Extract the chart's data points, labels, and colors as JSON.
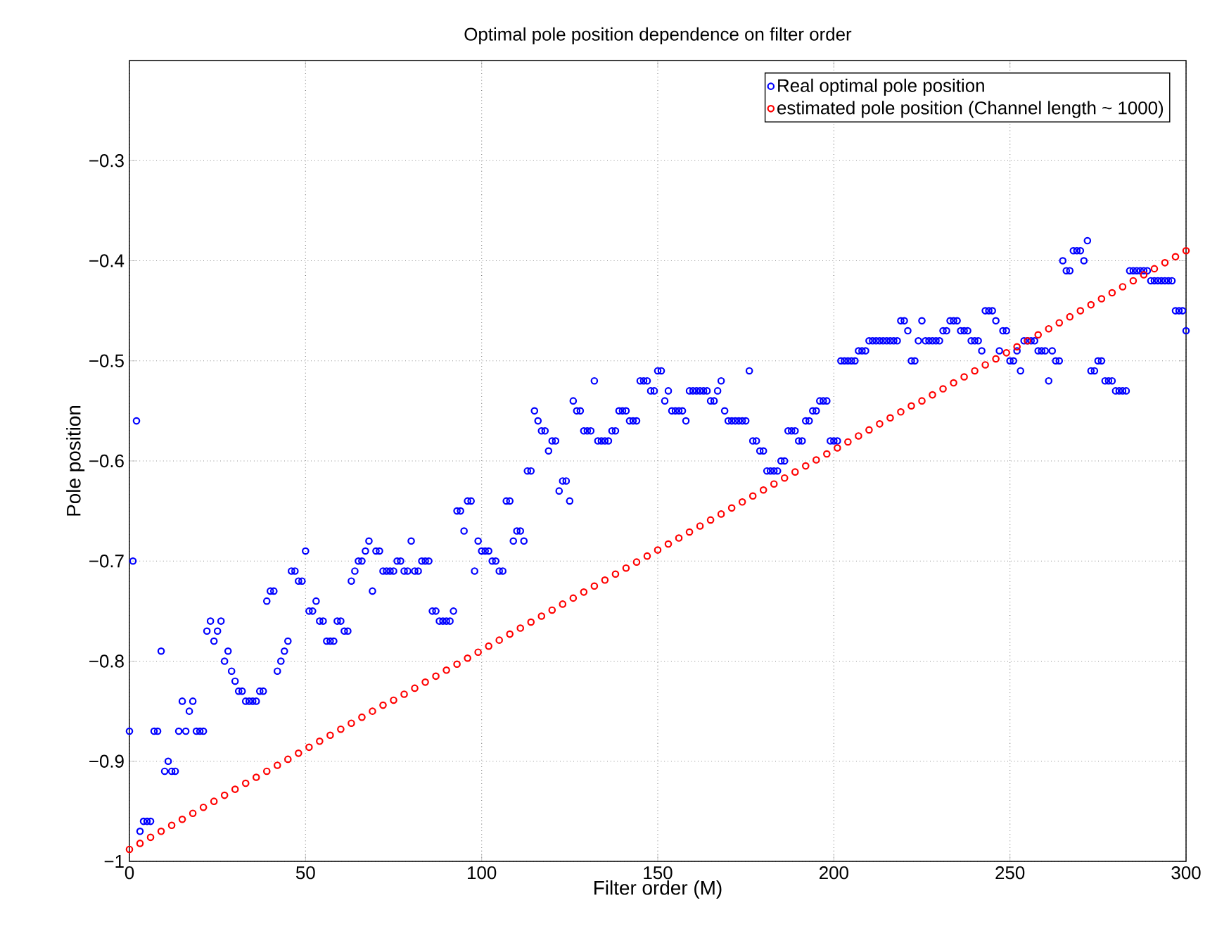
{
  "chart_data": {
    "type": "scatter",
    "title": "Optimal pole position dependence on filter order",
    "xlabel": "Filter order (M)",
    "ylabel": "Pole position",
    "xlim": [
      0,
      300
    ],
    "ylim": [
      -1,
      -0.2
    ],
    "xticks": [
      0,
      50,
      100,
      150,
      200,
      250,
      300
    ],
    "yticks": [
      {
        "value": -1,
        "label": "−1"
      },
      {
        "value": -0.9,
        "label": "−0.9"
      },
      {
        "value": -0.8,
        "label": "−0.8"
      },
      {
        "value": -0.7,
        "label": "−0.7"
      },
      {
        "value": -0.6,
        "label": "−0.6"
      },
      {
        "value": -0.5,
        "label": "−0.5"
      },
      {
        "value": -0.4,
        "label": "−0.4"
      },
      {
        "value": -0.3,
        "label": "−0.3"
      }
    ],
    "grid": true,
    "legend": "top right",
    "marker": "circle",
    "series": [
      {
        "name": "Real optimal pole position",
        "color": "#0000ff",
        "x": [
          0,
          1,
          2,
          3,
          4,
          5,
          6,
          7,
          8,
          9,
          10,
          11,
          12,
          13,
          14,
          15,
          16,
          17,
          18,
          19,
          20,
          21,
          22,
          23,
          24,
          25,
          26,
          27,
          28,
          29,
          30,
          31,
          32,
          33,
          34,
          35,
          36,
          37,
          38,
          39,
          40,
          41,
          42,
          43,
          44,
          45,
          46,
          47,
          48,
          49,
          50,
          51,
          52,
          53,
          54,
          55,
          56,
          57,
          58,
          59,
          60,
          61,
          62,
          63,
          64,
          65,
          66,
          67,
          68,
          69,
          70,
          71,
          72,
          73,
          74,
          75,
          76,
          77,
          78,
          79,
          80,
          81,
          82,
          83,
          84,
          85,
          86,
          87,
          88,
          89,
          90,
          91,
          92,
          93,
          94,
          95,
          96,
          97,
          98,
          99,
          100,
          101,
          102,
          103,
          104,
          105,
          106,
          107,
          108,
          109,
          110,
          111,
          112,
          113,
          114,
          115,
          116,
          117,
          118,
          119,
          120,
          121,
          122,
          123,
          124,
          125,
          126,
          127,
          128,
          129,
          130,
          131,
          132,
          133,
          134,
          135,
          136,
          137,
          138,
          139,
          140,
          141,
          142,
          143,
          144,
          145,
          146,
          147,
          148,
          149,
          150,
          151,
          152,
          153,
          154,
          155,
          156,
          157,
          158,
          159,
          160,
          161,
          162,
          163,
          164,
          165,
          166,
          167,
          168,
          169,
          170,
          171,
          172,
          173,
          174,
          175,
          176,
          177,
          178,
          179,
          180,
          181,
          182,
          183,
          184,
          185,
          186,
          187,
          188,
          189,
          190,
          191,
          192,
          193,
          194,
          195,
          196,
          197,
          198,
          199,
          200,
          201,
          202,
          203,
          204,
          205,
          206,
          207,
          208,
          209,
          210,
          211,
          212,
          213,
          214,
          215,
          216,
          217,
          218,
          219,
          220,
          221,
          222,
          223,
          224,
          225,
          226,
          227,
          228,
          229,
          230,
          231,
          232,
          233,
          234,
          235,
          236,
          237,
          238,
          239,
          240,
          241,
          242,
          243,
          244,
          245,
          246,
          247,
          248,
          249,
          250,
          251,
          252,
          253,
          254,
          255,
          256,
          257,
          258,
          259,
          260,
          261,
          262,
          263,
          264,
          265,
          266,
          267,
          268,
          269,
          270,
          271,
          272,
          273,
          274,
          275,
          276,
          277,
          278,
          279,
          280,
          281,
          282,
          283,
          284,
          285,
          286,
          287,
          288,
          289,
          290,
          291,
          292,
          293,
          294,
          295,
          296,
          297,
          298,
          299,
          300
        ],
        "values": [
          -0.87,
          -0.7,
          -0.56,
          -0.97,
          -0.96,
          -0.96,
          -0.96,
          -0.87,
          -0.87,
          -0.79,
          -0.91,
          -0.9,
          -0.91,
          -0.91,
          -0.87,
          -0.84,
          -0.87,
          -0.85,
          -0.84,
          -0.87,
          -0.87,
          -0.87,
          -0.77,
          -0.76,
          -0.78,
          -0.77,
          -0.76,
          -0.8,
          -0.79,
          -0.81,
          -0.82,
          -0.83,
          -0.83,
          -0.84,
          -0.84,
          -0.84,
          -0.84,
          -0.83,
          -0.83,
          -0.74,
          -0.73,
          -0.73,
          -0.81,
          -0.8,
          -0.79,
          -0.78,
          -0.71,
          -0.71,
          -0.72,
          -0.72,
          -0.69,
          -0.75,
          -0.75,
          -0.74,
          -0.76,
          -0.76,
          -0.78,
          -0.78,
          -0.78,
          -0.76,
          -0.76,
          -0.77,
          -0.77,
          -0.72,
          -0.71,
          -0.7,
          -0.7,
          -0.69,
          -0.68,
          -0.73,
          -0.69,
          -0.69,
          -0.71,
          -0.71,
          -0.71,
          -0.71,
          -0.7,
          -0.7,
          -0.71,
          -0.71,
          -0.68,
          -0.71,
          -0.71,
          -0.7,
          -0.7,
          -0.7,
          -0.75,
          -0.75,
          -0.76,
          -0.76,
          -0.76,
          -0.76,
          -0.75,
          -0.65,
          -0.65,
          -0.67,
          -0.64,
          -0.64,
          -0.71,
          -0.68,
          -0.69,
          -0.69,
          -0.69,
          -0.7,
          -0.7,
          -0.71,
          -0.71,
          -0.64,
          -0.64,
          -0.68,
          -0.67,
          -0.67,
          -0.68,
          -0.61,
          -0.61,
          -0.55,
          -0.56,
          -0.57,
          -0.57,
          -0.59,
          -0.58,
          -0.58,
          -0.63,
          -0.62,
          -0.62,
          -0.64,
          -0.54,
          -0.55,
          -0.55,
          -0.57,
          -0.57,
          -0.57,
          -0.52,
          -0.58,
          -0.58,
          -0.58,
          -0.58,
          -0.57,
          -0.57,
          -0.55,
          -0.55,
          -0.55,
          -0.56,
          -0.56,
          -0.56,
          -0.52,
          -0.52,
          -0.52,
          -0.53,
          -0.53,
          -0.51,
          -0.51,
          -0.54,
          -0.53,
          -0.55,
          -0.55,
          -0.55,
          -0.55,
          -0.56,
          -0.53,
          -0.53,
          -0.53,
          -0.53,
          -0.53,
          -0.53,
          -0.54,
          -0.54,
          -0.53,
          -0.52,
          -0.55,
          -0.56,
          -0.56,
          -0.56,
          -0.56,
          -0.56,
          -0.56,
          -0.51,
          -0.58,
          -0.58,
          -0.59,
          -0.59,
          -0.61,
          -0.61,
          -0.61,
          -0.61,
          -0.6,
          -0.6,
          -0.57,
          -0.57,
          -0.57,
          -0.58,
          -0.58,
          -0.56,
          -0.56,
          -0.55,
          -0.55,
          -0.54,
          -0.54,
          -0.54,
          -0.58,
          -0.58,
          -0.58,
          -0.5,
          -0.5,
          -0.5,
          -0.5,
          -0.5,
          -0.49,
          -0.49,
          -0.49,
          -0.48,
          -0.48,
          -0.48,
          -0.48,
          -0.48,
          -0.48,
          -0.48,
          -0.48,
          -0.48,
          -0.46,
          -0.46,
          -0.47,
          -0.5,
          -0.5,
          -0.48,
          -0.46,
          -0.48,
          -0.48,
          -0.48,
          -0.48,
          -0.48,
          -0.47,
          -0.47,
          -0.46,
          -0.46,
          -0.46,
          -0.47,
          -0.47,
          -0.47,
          -0.48,
          -0.48,
          -0.48,
          -0.49,
          -0.45,
          -0.45,
          -0.45,
          -0.46,
          -0.49,
          -0.47,
          -0.47,
          -0.5,
          -0.5,
          -0.49,
          -0.51,
          -0.48,
          -0.48,
          -0.48,
          -0.48,
          -0.49,
          -0.49,
          -0.49,
          -0.52,
          -0.49,
          -0.5,
          -0.5,
          -0.4,
          -0.41,
          -0.41,
          -0.39,
          -0.39,
          -0.39,
          -0.4,
          -0.38,
          -0.51,
          -0.51,
          -0.5,
          -0.5,
          -0.52,
          -0.52,
          -0.52,
          -0.53,
          -0.53,
          -0.53,
          -0.53,
          -0.41,
          -0.41,
          -0.41,
          -0.41,
          -0.41,
          -0.41,
          -0.42,
          -0.42,
          -0.42,
          -0.42,
          -0.42,
          -0.42,
          -0.42,
          -0.45,
          -0.45,
          -0.45,
          -0.47
        ]
      },
      {
        "name": "estimated pole position (Channel length ~ 1000)",
        "color": "#ff0000",
        "x": [
          0,
          3,
          6,
          9,
          12,
          15,
          18,
          21,
          24,
          27,
          30,
          33,
          36,
          39,
          42,
          45,
          48,
          51,
          54,
          57,
          60,
          63,
          66,
          69,
          72,
          75,
          78,
          81,
          84,
          87,
          90,
          93,
          96,
          99,
          102,
          105,
          108,
          111,
          114,
          117,
          120,
          123,
          126,
          129,
          132,
          135,
          138,
          141,
          144,
          147,
          150,
          153,
          156,
          159,
          162,
          165,
          168,
          171,
          174,
          177,
          180,
          183,
          186,
          189,
          192,
          195,
          198,
          201,
          204,
          207,
          210,
          213,
          216,
          219,
          222,
          225,
          228,
          231,
          234,
          237,
          240,
          243,
          246,
          249,
          252,
          255,
          258,
          261,
          264,
          267,
          270,
          273,
          276,
          279,
          282,
          285,
          288,
          291,
          294,
          297,
          300
        ],
        "values": [
          -0.988,
          -0.982,
          -0.976,
          -0.97,
          -0.964,
          -0.958,
          -0.952,
          -0.946,
          -0.94,
          -0.934,
          -0.928,
          -0.922,
          -0.916,
          -0.91,
          -0.904,
          -0.898,
          -0.892,
          -0.886,
          -0.88,
          -0.874,
          -0.868,
          -0.862,
          -0.856,
          -0.85,
          -0.844,
          -0.839,
          -0.833,
          -0.827,
          -0.821,
          -0.815,
          -0.809,
          -0.803,
          -0.797,
          -0.791,
          -0.785,
          -0.779,
          -0.773,
          -0.767,
          -0.761,
          -0.755,
          -0.749,
          -0.743,
          -0.737,
          -0.731,
          -0.725,
          -0.719,
          -0.713,
          -0.707,
          -0.701,
          -0.695,
          -0.689,
          -0.683,
          -0.677,
          -0.671,
          -0.665,
          -0.659,
          -0.653,
          -0.647,
          -0.641,
          -0.635,
          -0.629,
          -0.623,
          -0.617,
          -0.611,
          -0.605,
          -0.599,
          -0.593,
          -0.587,
          -0.581,
          -0.575,
          -0.569,
          -0.563,
          -0.557,
          -0.551,
          -0.545,
          -0.54,
          -0.534,
          -0.528,
          -0.522,
          -0.516,
          -0.51,
          -0.504,
          -0.498,
          -0.492,
          -0.486,
          -0.48,
          -0.474,
          -0.468,
          -0.462,
          -0.456,
          -0.45,
          -0.444,
          -0.438,
          -0.432,
          -0.426,
          -0.42,
          -0.414,
          -0.408,
          -0.402,
          -0.396,
          -0.39
        ]
      }
    ]
  }
}
